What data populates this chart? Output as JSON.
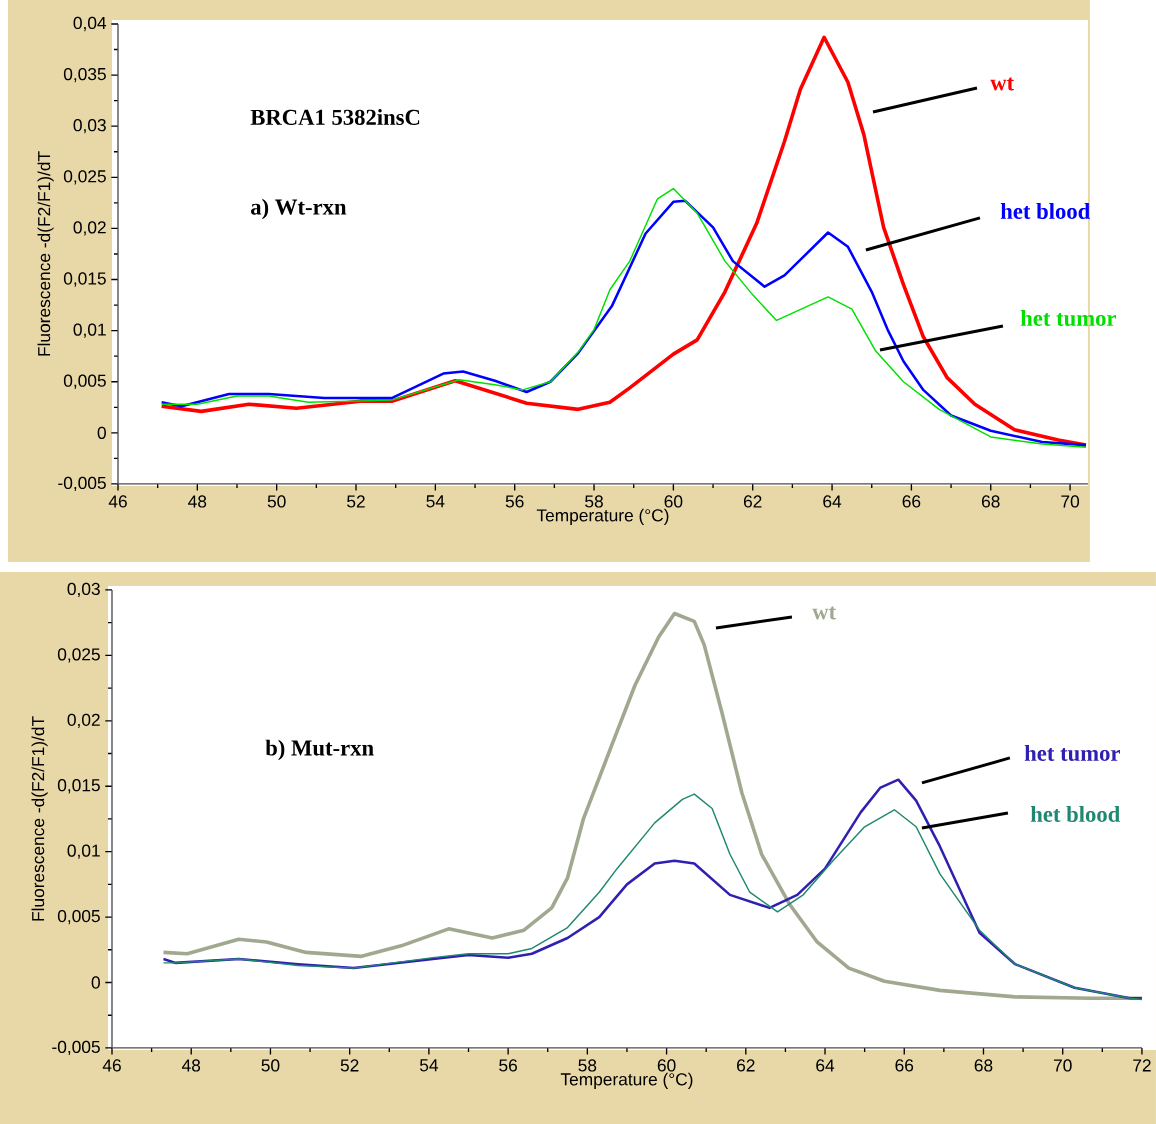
{
  "chart_data": [
    {
      "type": "line",
      "xlabel": "Temperature (°C)",
      "ylabel": "Fluorescence -d(F2/F1)/dT",
      "annotations": [
        "BRCA1 5382insC",
        "a) Wt-rxn"
      ],
      "xlim": [
        46,
        70.45
      ],
      "ylim": [
        -0.005,
        0.04
      ],
      "xticks": [
        46,
        48,
        50,
        52,
        54,
        56,
        58,
        60,
        62,
        64,
        66,
        68,
        70
      ],
      "yticks": [
        {
          "value": -0.005,
          "label": "-0,005"
        },
        0,
        {
          "value": 0.005,
          "label": "0,005"
        },
        {
          "value": 0.01,
          "label": "0,01"
        },
        {
          "value": 0.015,
          "label": "0,015"
        },
        {
          "value": 0.02,
          "label": "0,02"
        },
        {
          "value": 0.025,
          "label": "0,025"
        },
        {
          "value": 0.03,
          "label": "0,03"
        },
        {
          "value": 0.035,
          "label": "0,035"
        },
        {
          "value": 0.04,
          "label": "0,04"
        }
      ],
      "series": [
        {
          "name": "wt",
          "color": "#ff0000",
          "x": [
            47.1,
            48.1,
            49.3,
            50.5,
            52.1,
            52.9,
            54.5,
            56.3,
            57.6,
            58.4,
            58.9,
            60.0,
            60.6,
            61.3,
            62.1,
            62.8,
            63.2,
            63.8,
            64.4,
            64.8,
            65.3,
            65.8,
            66.3,
            66.9,
            67.6,
            68.6,
            69.7,
            70.4
          ],
          "values": [
            0.0026,
            0.0021,
            0.0028,
            0.0024,
            0.0031,
            0.0031,
            0.0051,
            0.0029,
            0.0023,
            0.003,
            0.0044,
            0.0077,
            0.0091,
            0.0138,
            0.0205,
            0.0285,
            0.0336,
            0.0387,
            0.0343,
            0.0292,
            0.0201,
            0.0145,
            0.0094,
            0.0054,
            0.0028,
            0.0003,
            -0.0007,
            -0.0012
          ]
        },
        {
          "name": "het blood",
          "color": "#0000ff",
          "x": [
            47.1,
            47.6,
            48.8,
            49.8,
            51.2,
            52.9,
            54.2,
            54.7,
            55.5,
            56.3,
            56.9,
            57.6,
            58.45,
            59.3,
            60.0,
            60.3,
            61.0,
            61.5,
            62.3,
            62.8,
            63.9,
            64.4,
            65.0,
            65.4,
            65.8,
            66.3,
            67.0,
            68.0,
            69.3,
            70.4
          ],
          "values": [
            0.003,
            0.0026,
            0.0038,
            0.0038,
            0.0034,
            0.0034,
            0.0058,
            0.006,
            0.0051,
            0.004,
            0.005,
            0.0078,
            0.0124,
            0.0195,
            0.0226,
            0.0227,
            0.0201,
            0.0168,
            0.0143,
            0.0154,
            0.0196,
            0.0182,
            0.0138,
            0.0101,
            0.007,
            0.0042,
            0.0017,
            0.0002,
            -0.0009,
            -0.0012
          ]
        },
        {
          "name": "het tumor",
          "color": "#00e000",
          "x": [
            47.1,
            48.0,
            49.0,
            49.8,
            50.8,
            52.9,
            54.6,
            55.5,
            56.2,
            56.9,
            57.6,
            58.0,
            58.4,
            58.9,
            59.6,
            60.0,
            60.6,
            61.3,
            62.0,
            62.6,
            63.9,
            64.5,
            65.1,
            65.8,
            66.7,
            68.0,
            69.3,
            70.4
          ],
          "values": [
            0.0028,
            0.0028,
            0.0036,
            0.0036,
            0.003,
            0.0032,
            0.0052,
            0.0047,
            0.0042,
            0.005,
            0.0079,
            0.0101,
            0.014,
            0.0168,
            0.0229,
            0.0239,
            0.0215,
            0.0168,
            0.0135,
            0.011,
            0.0133,
            0.0121,
            0.008,
            0.005,
            0.0023,
            -0.0004,
            -0.0011,
            -0.0014
          ]
        }
      ]
    },
    {
      "type": "line",
      "xlabel": "Temperature (°C)",
      "ylabel": "Fluorescence -d(F2/F1)/dT",
      "annotations": [
        "b) Mut-rxn"
      ],
      "xlim": [
        46,
        72
      ],
      "ylim": [
        -0.005,
        0.03
      ],
      "xticks": [
        46,
        48,
        50,
        52,
        54,
        56,
        58,
        60,
        62,
        64,
        66,
        68,
        70,
        72
      ],
      "yticks": [
        {
          "value": -0.005,
          "label": "-0,005"
        },
        0,
        {
          "value": 0.005,
          "label": "0,005"
        },
        {
          "value": 0.01,
          "label": "0,01"
        },
        {
          "value": 0.015,
          "label": "0,015"
        },
        {
          "value": 0.02,
          "label": "0,02"
        },
        {
          "value": 0.025,
          "label": "0,025"
        },
        {
          "value": 0.03,
          "label": "0,03"
        }
      ],
      "series": [
        {
          "name": "wt",
          "color": "#a0a890",
          "x": [
            47.3,
            47.9,
            49.2,
            49.9,
            50.9,
            52.3,
            53.3,
            54.5,
            55.6,
            56.4,
            57.1,
            57.5,
            57.9,
            58.6,
            59.2,
            59.8,
            60.2,
            60.7,
            60.95,
            61.4,
            61.9,
            62.4,
            63.1,
            63.8,
            64.6,
            65.5,
            66.9,
            68.8,
            70.7,
            72.0
          ],
          "values": [
            0.0023,
            0.0022,
            0.0033,
            0.0031,
            0.0023,
            0.002,
            0.0028,
            0.0041,
            0.0034,
            0.004,
            0.0057,
            0.008,
            0.0125,
            0.018,
            0.0227,
            0.0264,
            0.0282,
            0.0276,
            0.0258,
            0.0206,
            0.0145,
            0.0098,
            0.006,
            0.0031,
            0.0011,
            0.0001,
            -0.0006,
            -0.0011,
            -0.0012,
            -0.0012
          ]
        },
        {
          "name": "het tumor",
          "color": "#3020b0",
          "x": [
            47.3,
            47.6,
            49.2,
            50.7,
            52.1,
            54.1,
            55.0,
            56.0,
            56.6,
            57.5,
            58.3,
            59.0,
            59.7,
            60.2,
            60.7,
            61.6,
            62.6,
            63.3,
            64.0,
            64.9,
            65.4,
            65.85,
            66.3,
            66.9,
            67.9,
            68.8,
            70.3,
            71.7,
            72.0
          ],
          "values": [
            0.0018,
            0.0015,
            0.0018,
            0.0014,
            0.0011,
            0.0018,
            0.0021,
            0.0019,
            0.0022,
            0.0034,
            0.005,
            0.0075,
            0.0091,
            0.0093,
            0.0091,
            0.0067,
            0.0057,
            0.0067,
            0.0087,
            0.013,
            0.0149,
            0.0155,
            0.0139,
            0.0104,
            0.0038,
            0.0014,
            -0.0004,
            -0.0012,
            -0.0012
          ]
        },
        {
          "name": "het blood",
          "color": "#208870",
          "x": [
            47.3,
            47.6,
            49.2,
            50.7,
            52.1,
            54.1,
            55.0,
            56.0,
            56.6,
            57.5,
            58.3,
            58.75,
            59.7,
            60.4,
            60.7,
            61.15,
            61.6,
            62.1,
            62.8,
            63.45,
            64.2,
            65.0,
            65.75,
            66.3,
            66.9,
            67.9,
            68.8,
            70.3,
            71.7,
            72.0
          ],
          "values": [
            0.0015,
            0.0015,
            0.0018,
            0.0013,
            0.0011,
            0.0019,
            0.0022,
            0.0022,
            0.0026,
            0.0042,
            0.0069,
            0.0087,
            0.0122,
            0.014,
            0.0144,
            0.0133,
            0.0098,
            0.0069,
            0.0054,
            0.0067,
            0.0093,
            0.0119,
            0.0132,
            0.0119,
            0.0083,
            0.004,
            0.0014,
            -0.0004,
            -0.0012,
            -0.0013
          ]
        }
      ]
    }
  ]
}
